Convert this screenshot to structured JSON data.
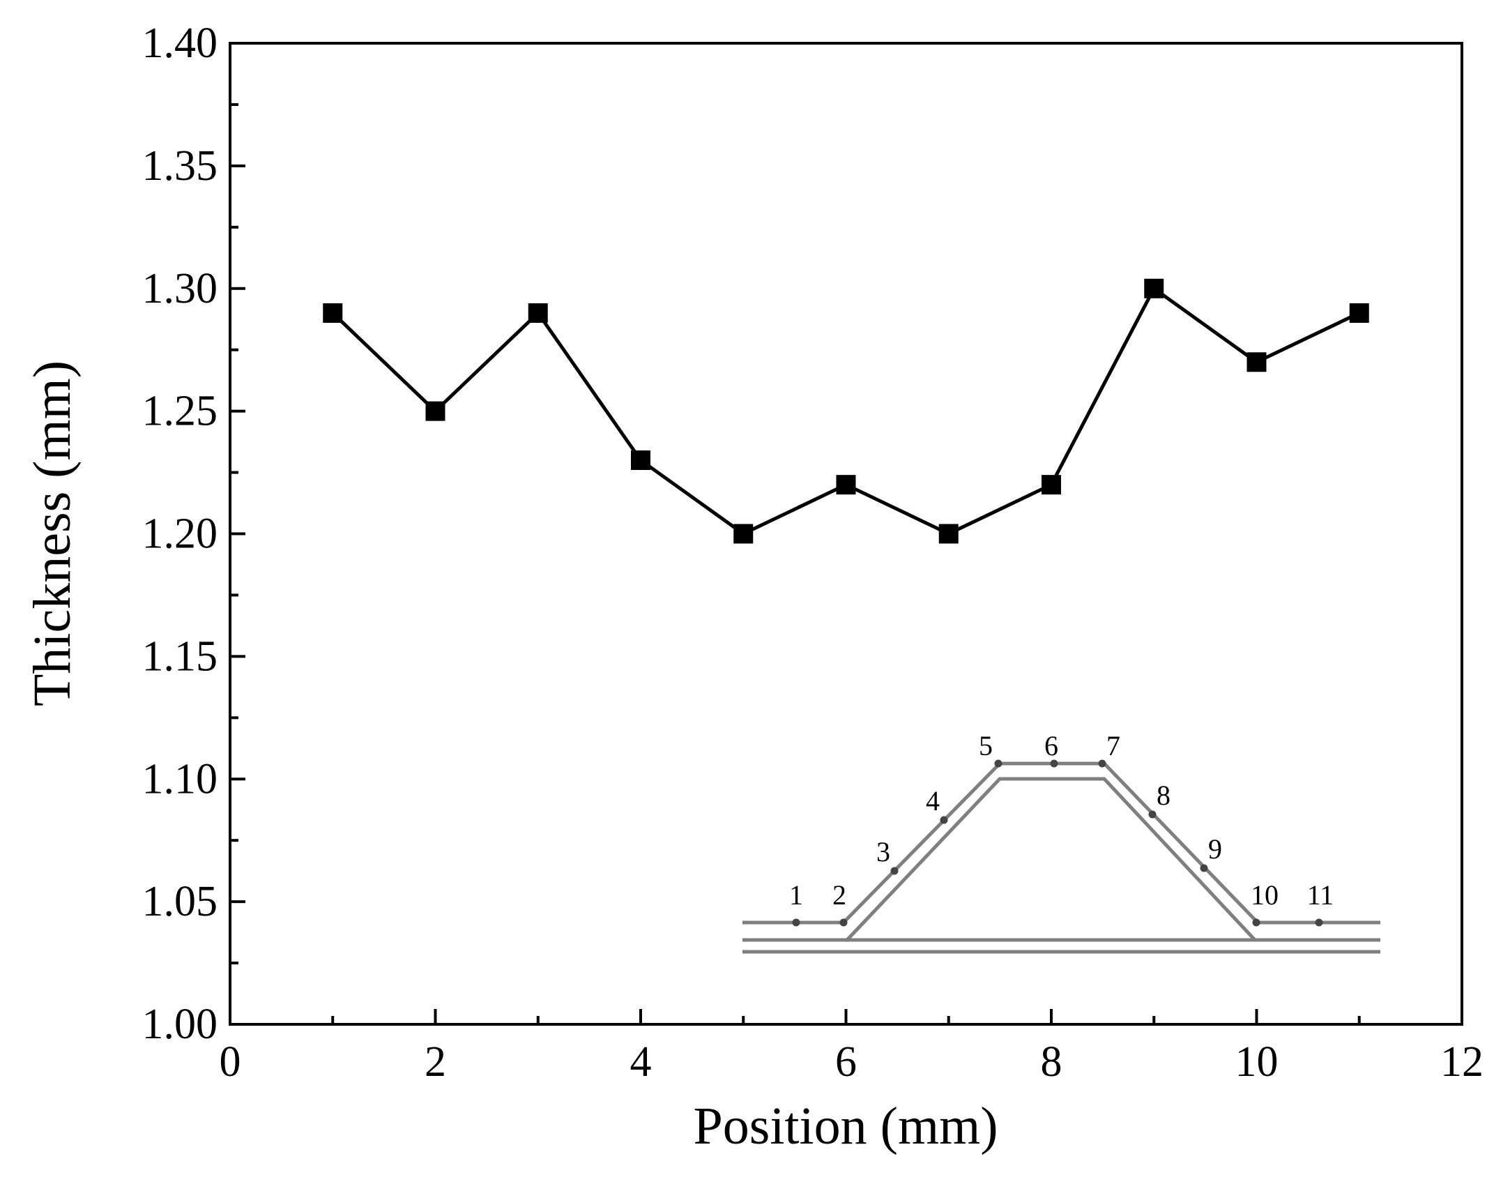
{
  "chart_data": {
    "type": "line",
    "title": "",
    "xlabel": "Position (mm)",
    "ylabel": "Thickness (mm)",
    "xlim": [
      0,
      12
    ],
    "ylim": [
      1.0,
      1.4
    ],
    "x_major_ticks": [
      0,
      2,
      4,
      6,
      8,
      10,
      12
    ],
    "x_tick_labels": [
      "0",
      "2",
      "4",
      "6",
      "8",
      "10",
      "12"
    ],
    "x_minor_ticks": [
      1,
      3,
      5,
      7,
      9,
      11
    ],
    "y_major_ticks": [
      1.0,
      1.05,
      1.1,
      1.15,
      1.2,
      1.25,
      1.3,
      1.35,
      1.4
    ],
    "y_tick_labels": [
      "1.00",
      "1.05",
      "1.10",
      "1.15",
      "1.20",
      "1.25",
      "1.30",
      "1.35",
      "1.40"
    ],
    "y_minor_ticks": [
      1.025,
      1.075,
      1.125,
      1.175,
      1.225,
      1.275,
      1.325,
      1.375
    ],
    "grid": false,
    "series": [
      {
        "name": "Thickness",
        "marker": "square",
        "color": "#000000",
        "x": [
          1,
          2,
          3,
          4,
          5,
          6,
          7,
          8,
          9,
          10,
          11
        ],
        "values": [
          1.29,
          1.25,
          1.29,
          1.23,
          1.2,
          1.22,
          1.2,
          1.22,
          1.3,
          1.27,
          1.29
        ]
      }
    ],
    "inset": {
      "description": "hat-shaped profile with measurement points",
      "point_labels": [
        "1",
        "2",
        "3",
        "4",
        "5",
        "6",
        "7",
        "8",
        "9",
        "10",
        "11"
      ],
      "line_color": "#7f7f7f",
      "point_color": "#444444"
    }
  }
}
